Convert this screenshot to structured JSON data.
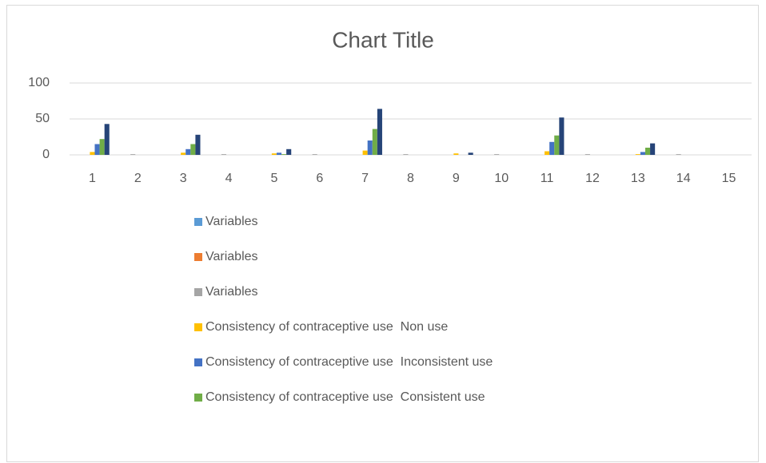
{
  "chart_data": {
    "type": "bar",
    "title": "Chart Title",
    "categories": [
      "1",
      "2",
      "3",
      "4",
      "5",
      "6",
      "7",
      "8",
      "9",
      "10",
      "11",
      "12",
      "13",
      "14",
      "15"
    ],
    "series": [
      {
        "name": "Variables",
        "color": "#5b9bd5",
        "values": [
          0,
          0,
          0,
          0,
          0,
          0,
          0,
          0,
          0,
          0,
          0,
          0,
          0,
          0,
          0
        ]
      },
      {
        "name": "Variables",
        "color": "#ed7d31",
        "values": [
          0,
          0,
          0,
          0,
          0,
          0,
          0,
          0,
          0,
          0,
          0,
          0,
          0,
          0,
          0
        ]
      },
      {
        "name": "Variables",
        "color": "#a5a5a5",
        "values": [
          0,
          1,
          0,
          1,
          0,
          1,
          0,
          1,
          0,
          1,
          0,
          1,
          0,
          1,
          0
        ]
      },
      {
        "name": "Consistency of contraceptive use  Non use",
        "color": "#ffc000",
        "values": [
          4,
          0,
          3,
          0,
          2,
          0,
          6,
          0,
          2,
          0,
          5,
          0,
          1,
          0,
          0
        ]
      },
      {
        "name": "Consistency of contraceptive use  Inconsistent use",
        "color": "#4472c4",
        "values": [
          15,
          0,
          8,
          0,
          3,
          0,
          20,
          0,
          0,
          0,
          18,
          0,
          4,
          0,
          0
        ]
      },
      {
        "name": "Consistency of contraceptive use  Consistent use",
        "color": "#70ad47",
        "values": [
          22,
          0,
          15,
          0,
          1,
          0,
          36,
          0,
          0,
          0,
          27,
          0,
          10,
          0,
          0
        ]
      },
      {
        "name": null,
        "color": "#264478",
        "values": [
          43,
          0,
          28,
          0,
          8,
          0,
          64,
          0,
          3,
          0,
          52,
          0,
          16,
          0,
          0
        ]
      }
    ],
    "ylim": [
      0,
      100
    ],
    "yticks": [
      0,
      50,
      100
    ],
    "grid": true
  }
}
